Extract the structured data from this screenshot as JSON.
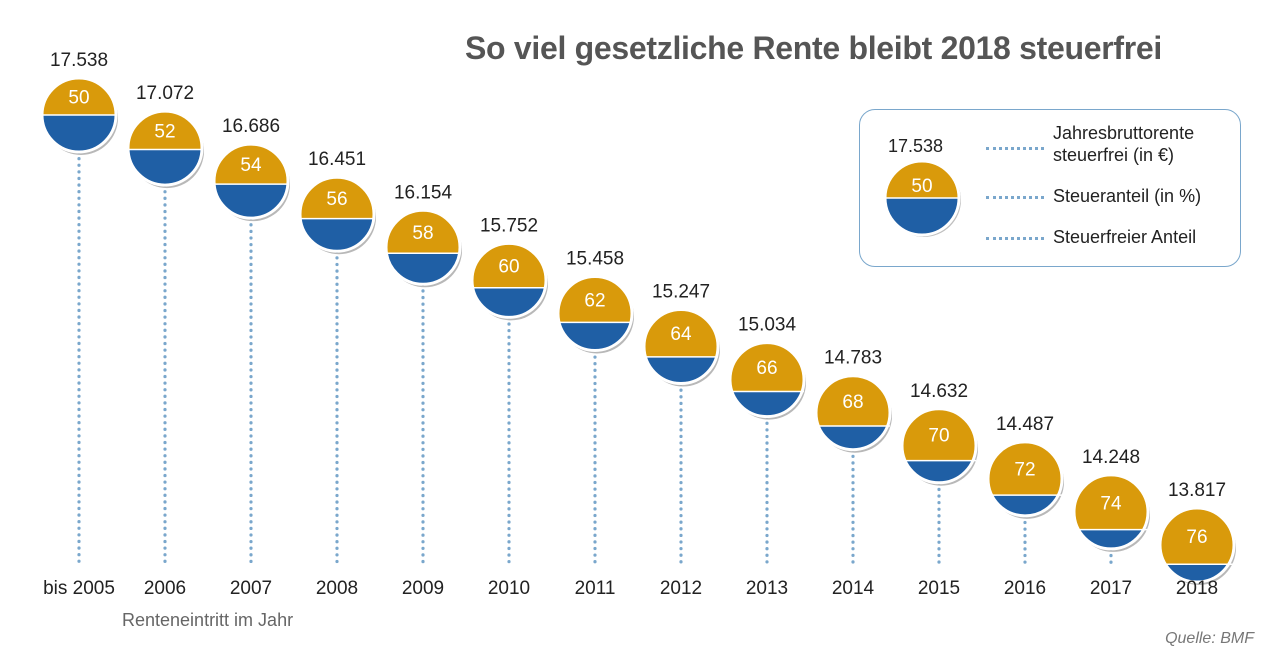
{
  "title": "So viel gesetzliche Rente bleibt 2018 steuerfrei",
  "xaxis_label": "Renteneintritt im Jahr",
  "source": "Quelle: BMF",
  "colors": {
    "taxed": "#d99a0b",
    "taxfree": "#1f5fa5",
    "dots": "#7aa7cc",
    "text": "#222222"
  },
  "legend": {
    "amount_example": "17.538",
    "percent_example": "50",
    "items": [
      "Jahresbruttorente steuerfrei (in €)",
      "Steueranteil (in %)",
      "Steuerfreier Anteil"
    ]
  },
  "chart_data": {
    "type": "scatter",
    "title": "So viel gesetzliche Rente bleibt 2018 steuerfrei",
    "xlabel": "Renteneintritt im Jahr",
    "categories": [
      "bis 2005",
      "2006",
      "2007",
      "2008",
      "2009",
      "2010",
      "2011",
      "2012",
      "2013",
      "2014",
      "2015",
      "2016",
      "2017",
      "2018"
    ],
    "series": [
      {
        "name": "Jahresbruttorente steuerfrei (in €)",
        "values": [
          17538,
          17072,
          16686,
          16451,
          16154,
          15752,
          15458,
          15247,
          15034,
          14783,
          14632,
          14487,
          14248,
          13817
        ],
        "labels": [
          "17.538",
          "17.072",
          "16.686",
          "16.451",
          "16.154",
          "15.752",
          "15.458",
          "15.247",
          "15.034",
          "14.783",
          "14.632",
          "14.487",
          "14.248",
          "13.817"
        ]
      },
      {
        "name": "Steueranteil (in %)",
        "values": [
          50,
          52,
          54,
          56,
          58,
          60,
          62,
          64,
          66,
          68,
          70,
          72,
          74,
          76
        ]
      }
    ]
  }
}
